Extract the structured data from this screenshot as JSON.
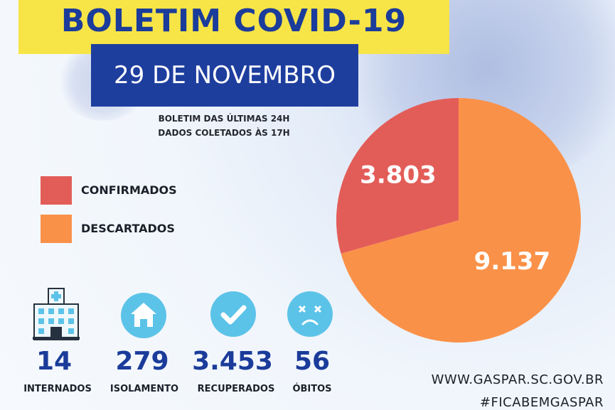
{
  "header": {
    "title": "BOLETIM COVID-19",
    "date": "29 DE NOVEMBRO",
    "subtitle_line1": "BOLETIM DAS ÚLTIMAS 24H",
    "subtitle_line2": "DADOS COLETADOS ÀS  17H",
    "title_color": "#1b3c9a",
    "title_band_color": "#f7e447",
    "date_band_color": "#1e3e9e"
  },
  "chart_data": {
    "type": "pie",
    "slices": [
      {
        "label": "CONFIRMADOS",
        "value": 3803,
        "display": "3.803",
        "color": "#e35d58"
      },
      {
        "label": "DESCARTADOS",
        "value": 9137,
        "display": "9.137",
        "color": "#fa9148"
      }
    ],
    "legend_position": "left"
  },
  "stats": [
    {
      "icon": "hospital-icon",
      "value": "14",
      "label": "INTERNADOS"
    },
    {
      "icon": "house-icon",
      "value": "279",
      "label": "ISOLAMENTO"
    },
    {
      "icon": "checkmark-icon",
      "value": "3.453",
      "label": "RECUPERADOS"
    },
    {
      "icon": "sad-face-icon",
      "value": "56",
      "label": "ÓBITOS"
    }
  ],
  "footer": {
    "website": "WWW.GASPAR.SC.GOV.BR",
    "hashtag": "#FICABEMGASPAR"
  },
  "accent_icon_color": "#5cc3e8"
}
